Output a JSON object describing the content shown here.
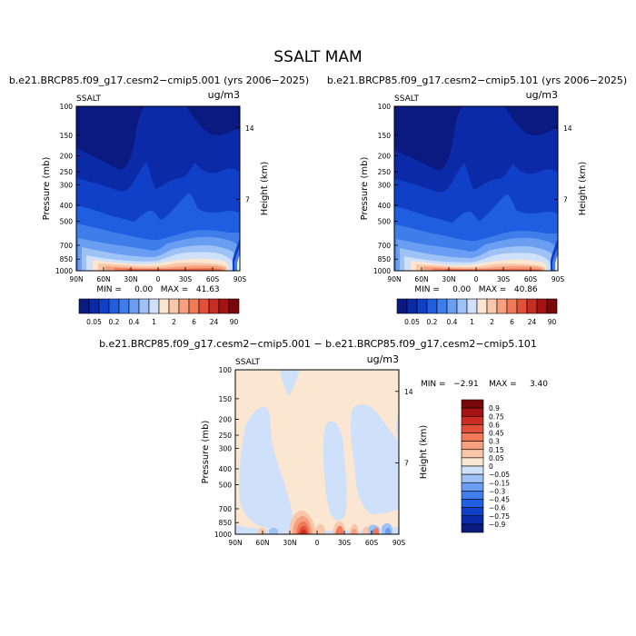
{
  "figure": {
    "title": "SSALT MAM",
    "panels": {
      "left": {
        "title": "b.e21.BRCP85.f09_g17.cesm2−cmip5.001 (yrs 2006−2025)",
        "var_label": "SSALT",
        "units": "ug/m3",
        "minmax": "MIN =     0.00   MAX =   41.63"
      },
      "right": {
        "title": "b.e21.BRCP85.f09_g17.cesm2−cmip5.101 (yrs 2006−2025)",
        "var_label": "SSALT",
        "units": "ug/m3",
        "minmax": "MIN =     0.00   MAX =   40.86"
      },
      "diff": {
        "title": "b.e21.BRCP85.f09_g17.cesm2−cmip5.001 − b.e21.BRCP85.f09_g17.cesm2−cmip5.101",
        "var_label": "SSALT",
        "units": "ug/m3",
        "minmax": "MIN =   −2.91    MAX =     3.40"
      }
    }
  },
  "chart_data": {
    "type": "heatmap",
    "x_ticks": [
      "90N",
      "60N",
      "30N",
      "0",
      "30S",
      "60S",
      "90S"
    ],
    "y_ticks": [
      "100",
      "150",
      "200",
      "250",
      "300",
      "400",
      "500",
      "700",
      "850",
      "1000"
    ],
    "y_right_ticks": [
      "14",
      "7"
    ],
    "y_label": "Pressure (mb)",
    "y_right_label": "Height (km)",
    "y_scale": "log",
    "y_range": [
      1000,
      100
    ],
    "main_levels": [
      "0.05",
      "0.2",
      "0.4",
      "1",
      "2",
      "6",
      "24",
      "90"
    ],
    "main_colors": [
      "#0a1a80",
      "#0b2aa8",
      "#1040c8",
      "#1f5ee0",
      "#3f7eea",
      "#6a9ef2",
      "#9ec2f6",
      "#cfe0fa",
      "#fbe6d2",
      "#f8c6a8",
      "#f5a07e",
      "#f07a58",
      "#e3503a",
      "#c92c22",
      "#a41414",
      "#7a0808"
    ],
    "diff_levels": [
      "0.9",
      "0.75",
      "0.6",
      "0.45",
      "0.3",
      "0.15",
      "0.05",
      "0",
      "−0.05",
      "−0.15",
      "−0.3",
      "−0.45",
      "−0.6",
      "−0.75",
      "−0.9"
    ],
    "diff_colors": [
      "#7a0808",
      "#a41414",
      "#c92c22",
      "#e3503a",
      "#f07a58",
      "#f5a07e",
      "#f8c6a8",
      "#fbe6d2",
      "#cfe0fa",
      "#9ec2f6",
      "#6a9ef2",
      "#3f7eea",
      "#1f5ee0",
      "#1040c8",
      "#0b2aa8",
      "#0a1a80"
    ],
    "series": [
      {
        "min": 0.0,
        "max": 41.63
      },
      {
        "min": 0.0,
        "max": 40.86
      },
      {
        "min": -2.91,
        "max": 3.4
      }
    ]
  }
}
